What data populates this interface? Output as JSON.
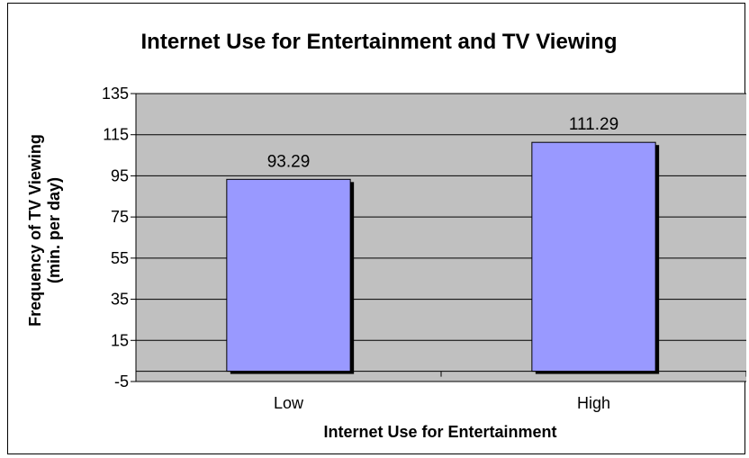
{
  "chart_data": {
    "type": "bar",
    "title": "Internet Use for Entertainment and TV Viewing",
    "xlabel": "Internet Use for Entertainment",
    "ylabel": "Frequency of TV Viewing",
    "ylabel_line2": "(min. per day)",
    "categories": [
      "Low",
      "High"
    ],
    "values": [
      93.29,
      111.29
    ],
    "data_labels": [
      "93.29",
      "111.29"
    ],
    "ylim": [
      -5,
      135
    ],
    "yticks": [
      -5,
      15,
      35,
      55,
      75,
      95,
      115,
      135
    ],
    "ytick_labels": [
      "-5",
      "15",
      "35",
      "55",
      "75",
      "95",
      "115",
      "135"
    ],
    "baseline": 0,
    "grid": true,
    "legend": "none",
    "colors": {
      "bar_fill": "#9999ff",
      "bar_stroke": "#000000",
      "bar_shadow": "#000000",
      "plot_background": "#c0c0c0",
      "gridline": "#000000"
    }
  }
}
